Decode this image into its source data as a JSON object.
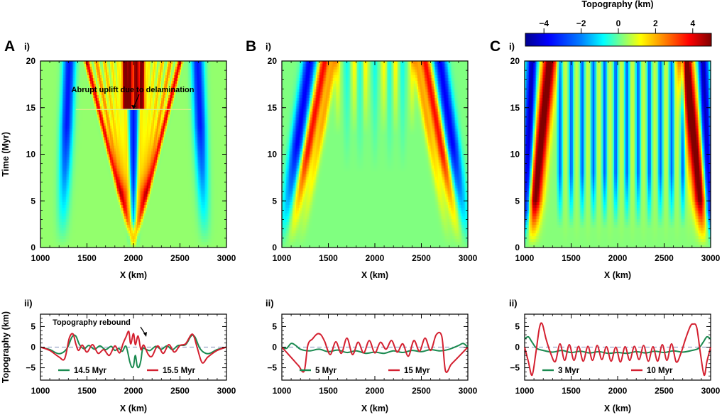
{
  "colorbar": {
    "title": "Topography (km)",
    "ticks": [
      "−4",
      "−2",
      "0",
      "2",
      "4"
    ],
    "range": [
      -5,
      5
    ],
    "colors": [
      "#00008f",
      "#0000ff",
      "#0080ff",
      "#00ffff",
      "#80ff80",
      "#ffff00",
      "#ff8000",
      "#ff0000",
      "#800000"
    ]
  },
  "panels": [
    {
      "letter": "A",
      "top_label": "i)",
      "bottom_label": "ii)"
    },
    {
      "letter": "B",
      "top_label": "i)",
      "bottom_label": "ii)"
    },
    {
      "letter": "C",
      "top_label": "i)",
      "bottom_label": "ii)"
    }
  ],
  "annotations": {
    "delamination": "Abrupt uplift due to delamination",
    "rebound": "Topography rebound"
  },
  "chart_data": [
    {
      "type": "heatmap",
      "panel": "A i",
      "title": "",
      "xlabel": "X (km)",
      "ylabel": "Time (Myr)",
      "xlim": [
        1000,
        3000
      ],
      "ylim": [
        0,
        20
      ],
      "xticks": [
        "1000",
        "1500",
        "2000",
        "2500",
        "3000"
      ],
      "yticks": [
        "0",
        "5",
        "10",
        "15",
        "20"
      ],
      "z_unit": "Topography (km)",
      "features": {
        "event_time_myr": 14.8,
        "central_low_x": [
          1900,
          2100
        ]
      }
    },
    {
      "type": "heatmap",
      "panel": "B i",
      "xlabel": "X (km)",
      "ylabel": "",
      "xlim": [
        1000,
        3000
      ],
      "ylim": [
        0,
        20
      ],
      "xticks": [
        "1000",
        "1500",
        "2000",
        "2500",
        "3000"
      ],
      "yticks": [
        "0",
        "5",
        "10",
        "15",
        "20"
      ],
      "z_unit": "Topography (km)"
    },
    {
      "type": "heatmap",
      "panel": "C i",
      "xlabel": "X (km)",
      "ylabel": "",
      "xlim": [
        1000,
        3000
      ],
      "ylim": [
        0,
        20
      ],
      "xticks": [
        "1000",
        "1500",
        "2000",
        "2500",
        "3000"
      ],
      "yticks": [
        "0",
        "5",
        "10",
        "15",
        "20"
      ],
      "z_unit": "Topography (km)"
    },
    {
      "type": "line",
      "panel": "A ii",
      "ylabel": "Topography (km)",
      "xlabel": "X (km)",
      "xlim": [
        1000,
        3000
      ],
      "ylim": [
        -8,
        8
      ],
      "xticks": [
        "1000",
        "1500",
        "2000",
        "2500",
        "3000"
      ],
      "yticks": [
        "−5",
        "0",
        "5"
      ],
      "series": [
        {
          "name": "14.5 Myr",
          "color": "#1a8a50",
          "x": [
            1000,
            1100,
            1200,
            1280,
            1340,
            1380,
            1420,
            1470,
            1520,
            1580,
            1640,
            1700,
            1760,
            1800,
            1840,
            1880,
            1920,
            1960,
            1980,
            2000,
            2020,
            2040,
            2060,
            2080,
            2100,
            2140,
            2180,
            2240,
            2300,
            2360,
            2420,
            2480,
            2560,
            2620,
            2660,
            2720,
            2800,
            2900,
            3000
          ],
          "y": [
            0,
            -0.6,
            -1.6,
            -0.5,
            2.5,
            2.7,
            0.6,
            -0.4,
            0.4,
            -0.5,
            0.3,
            -0.6,
            0.2,
            -0.8,
            -0.3,
            -1.0,
            0.2,
            -3.5,
            -4.8,
            -4.6,
            -2.0,
            -4.6,
            -4.8,
            -3.2,
            -0.4,
            -0.6,
            -0.8,
            0.2,
            -0.5,
            0.3,
            -0.6,
            0.4,
            0.6,
            2.7,
            2.5,
            -0.5,
            -1.6,
            -0.6,
            0
          ]
        },
        {
          "name": "15.5 Myr",
          "color": "#d42030",
          "x": [
            1000,
            1100,
            1200,
            1260,
            1310,
            1350,
            1380,
            1410,
            1450,
            1500,
            1560,
            1620,
            1680,
            1740,
            1800,
            1850,
            1890,
            1920,
            1950,
            1970,
            2000,
            2020,
            2050,
            2080,
            2110,
            2160,
            2200,
            2260,
            2320,
            2380,
            2440,
            2500,
            2560,
            2620,
            2650,
            2690,
            2740,
            2800,
            2900,
            3000
          ],
          "y": [
            0,
            -0.8,
            -2.4,
            -2.8,
            2.2,
            3.2,
            0.8,
            -0.8,
            0.5,
            -1.2,
            0.6,
            -1.5,
            -0.6,
            -2.0,
            0.3,
            -1.4,
            1.0,
            2.5,
            3.8,
            0.8,
            3.3,
            0.6,
            2.7,
            -0.6,
            0.5,
            -1.8,
            -2.2,
            0.3,
            -1.5,
            0.6,
            -1.2,
            0.4,
            0.8,
            3.0,
            2.6,
            -0.5,
            -3.8,
            -2.4,
            -0.8,
            0
          ]
        }
      ]
    },
    {
      "type": "line",
      "panel": "B ii",
      "xlabel": "X (km)",
      "xlim": [
        1000,
        3000
      ],
      "ylim": [
        -8,
        8
      ],
      "xticks": [
        "1000",
        "1500",
        "2000",
        "2500",
        "3000"
      ],
      "yticks": [
        "−5",
        "0",
        "5"
      ],
      "series": [
        {
          "name": "5 Myr",
          "color": "#1a8a50",
          "x": [
            1000,
            1050,
            1100,
            1150,
            1200,
            1300,
            1400,
            1500,
            1600,
            1700,
            1800,
            1900,
            2000,
            2100,
            2200,
            2300,
            2400,
            2500,
            2600,
            2700,
            2800,
            2900,
            2950,
            3000
          ],
          "y": [
            0,
            -0.3,
            0.9,
            0.4,
            -0.5,
            -0.9,
            -0.5,
            -1.1,
            -0.7,
            -1.3,
            -0.9,
            -1.5,
            -1.2,
            -1.5,
            -0.9,
            -1.3,
            -0.8,
            -1.1,
            -0.6,
            -0.9,
            -0.5,
            0.4,
            0.9,
            0
          ]
        },
        {
          "name": "15 Myr",
          "color": "#d42030",
          "x": [
            1000,
            1060,
            1120,
            1180,
            1240,
            1280,
            1330,
            1380,
            1420,
            1460,
            1520,
            1580,
            1640,
            1700,
            1760,
            1820,
            1880,
            1940,
            2000,
            2060,
            2120,
            2180,
            2240,
            2300,
            2360,
            2420,
            2480,
            2540,
            2600,
            2660,
            2720,
            2760,
            2820,
            2880,
            2940,
            3000
          ],
          "y": [
            0,
            -1.5,
            -3.0,
            -4.5,
            -5.8,
            0.5,
            2.0,
            3.2,
            3.0,
            1.4,
            -1.8,
            1.3,
            -1.5,
            2.2,
            -1.8,
            1.2,
            -1.4,
            1.6,
            -1.4,
            1.2,
            -0.5,
            1.6,
            -1.2,
            0.8,
            -2.2,
            1.6,
            -1.0,
            2.2,
            -0.8,
            3.0,
            2.6,
            -5.8,
            -4.2,
            -2.8,
            -1.4,
            0
          ]
        }
      ]
    },
    {
      "type": "line",
      "panel": "C ii",
      "xlabel": "X (km)",
      "xlim": [
        1000,
        3000
      ],
      "ylim": [
        -8,
        8
      ],
      "xticks": [
        "1000",
        "1500",
        "2000",
        "2500",
        "3000"
      ],
      "yticks": [
        "−5",
        "0",
        "5"
      ],
      "series": [
        {
          "name": "3 Myr",
          "color": "#1a8a50",
          "x": [
            1000,
            1040,
            1080,
            1130,
            1200,
            1300,
            1400,
            1500,
            1600,
            1700,
            1800,
            1900,
            2000,
            2100,
            2200,
            2300,
            2400,
            2500,
            2600,
            2700,
            2800,
            2870,
            2920,
            2960,
            3000
          ],
          "y": [
            2.0,
            2.5,
            1.2,
            -0.3,
            -0.8,
            -1.2,
            -0.8,
            -1.3,
            -1.0,
            -1.4,
            -1.1,
            -1.5,
            -1.3,
            -1.5,
            -1.1,
            -1.4,
            -1.0,
            -1.3,
            -0.9,
            -1.2,
            -0.8,
            -0.3,
            1.2,
            2.5,
            2.0
          ]
        },
        {
          "name": "10 Myr",
          "color": "#d42030",
          "x": [
            1000,
            1040,
            1080,
            1120,
            1160,
            1190,
            1230,
            1280,
            1330,
            1380,
            1430,
            1480,
            1530,
            1580,
            1630,
            1680,
            1730,
            1780,
            1830,
            1880,
            1930,
            1980,
            2030,
            2080,
            2130,
            2180,
            2230,
            2280,
            2330,
            2380,
            2430,
            2480,
            2530,
            2580,
            2630,
            2680,
            2730,
            2780,
            2810,
            2850,
            2890,
            2930,
            2960,
            3000
          ],
          "y": [
            0,
            -3.5,
            -6.8,
            -1.5,
            4.8,
            5.6,
            2.0,
            -1.5,
            -3.5,
            0.8,
            -3.2,
            0.6,
            -3.2,
            0.2,
            -3.4,
            0.2,
            -3.2,
            0.4,
            -3.0,
            0.1,
            -3.4,
            0.0,
            -3.6,
            0.1,
            -3.2,
            0.2,
            -3.0,
            0.4,
            -3.4,
            0.1,
            -3.4,
            0.6,
            -3.2,
            0.8,
            -3.6,
            -1.5,
            2.0,
            5.0,
            5.6,
            4.8,
            -1.5,
            -6.8,
            -3.5,
            0
          ]
        }
      ]
    }
  ]
}
